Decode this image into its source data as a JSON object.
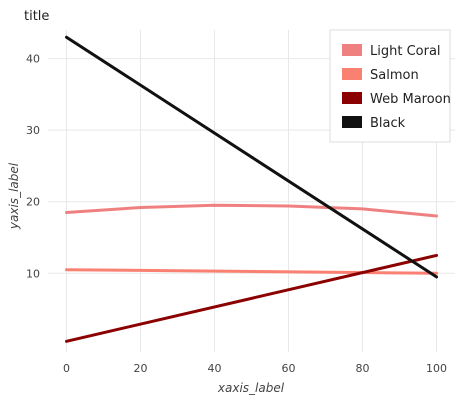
{
  "chart_data": {
    "type": "line",
    "title": "title",
    "xlabel": "xaxis_label",
    "ylabel": "yaxis_label",
    "xlim": [
      -5,
      105
    ],
    "ylim": [
      -1,
      44
    ],
    "xticks": [
      0,
      20,
      40,
      60,
      80,
      100
    ],
    "yticks": [
      10,
      20,
      30,
      40
    ],
    "grid": true,
    "legend_position": "top-right",
    "series": [
      {
        "name": "Light Coral",
        "color": "#f08080",
        "x": [
          0,
          20,
          40,
          60,
          80,
          100
        ],
        "y": [
          18.5,
          19.2,
          19.5,
          19.4,
          19.0,
          18.0
        ]
      },
      {
        "name": "Salmon",
        "color": "#fa8072",
        "x": [
          0,
          100
        ],
        "y": [
          10.5,
          10.0
        ]
      },
      {
        "name": "Web Maroon",
        "color": "#8b0000",
        "x": [
          0,
          100
        ],
        "y": [
          0.5,
          12.5
        ]
      },
      {
        "name": "Black",
        "color": "#111111",
        "x": [
          0,
          100
        ],
        "y": [
          43,
          9.5
        ]
      }
    ]
  }
}
